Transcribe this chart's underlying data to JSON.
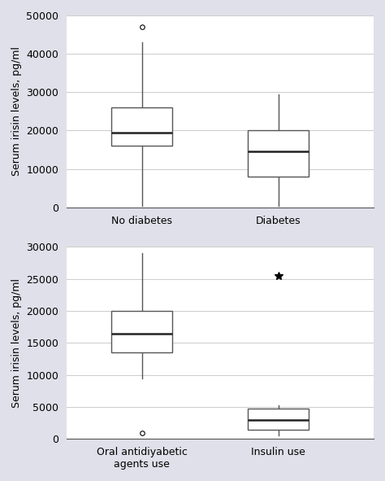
{
  "top_plot": {
    "categories": [
      "No diabetes",
      "Diabetes"
    ],
    "boxes": [
      {
        "q1": 16000,
        "median": 19500,
        "q3": 26000,
        "whisker_low": 500,
        "whisker_high": 43000,
        "outliers": [
          47000
        ],
        "outlier_markers": [
          "o"
        ]
      },
      {
        "q1": 8000,
        "median": 14500,
        "q3": 20000,
        "whisker_low": 500,
        "whisker_high": 29500,
        "outliers": [],
        "outlier_markers": []
      }
    ],
    "ylim": [
      0,
      50000
    ],
    "yticks": [
      0,
      10000,
      20000,
      30000,
      40000,
      50000
    ],
    "ylabel": "Serum irisin levels, pg/ml"
  },
  "bottom_plot": {
    "categories": [
      "Oral antidiyabetic\nagents use",
      "Insulin use"
    ],
    "boxes": [
      {
        "q1": 13500,
        "median": 16500,
        "q3": 20000,
        "whisker_low": 9500,
        "whisker_high": 29000,
        "outliers": [
          1000
        ],
        "outlier_markers": [
          "o"
        ]
      },
      {
        "q1": 1500,
        "median": 3000,
        "q3": 4800,
        "whisker_low": 500,
        "whisker_high": 5200,
        "outliers": [
          25500
        ],
        "outlier_markers": [
          "*"
        ]
      }
    ],
    "ylim": [
      0,
      30000
    ],
    "yticks": [
      0,
      5000,
      10000,
      15000,
      20000,
      25000,
      30000
    ],
    "ylabel": "Serum irisin levels, pg/ml"
  },
  "box_width": 0.45,
  "box_color": "white",
  "box_edge_color": "#555555",
  "median_color": "#222222",
  "whisker_color": "#555555",
  "background_color": "#e0e0ea",
  "plot_bg_color": "white",
  "grid_color": "#cccccc",
  "tick_fontsize": 9,
  "ylabel_fontsize": 9,
  "linewidth": 1.0,
  "median_linewidth": 1.8
}
